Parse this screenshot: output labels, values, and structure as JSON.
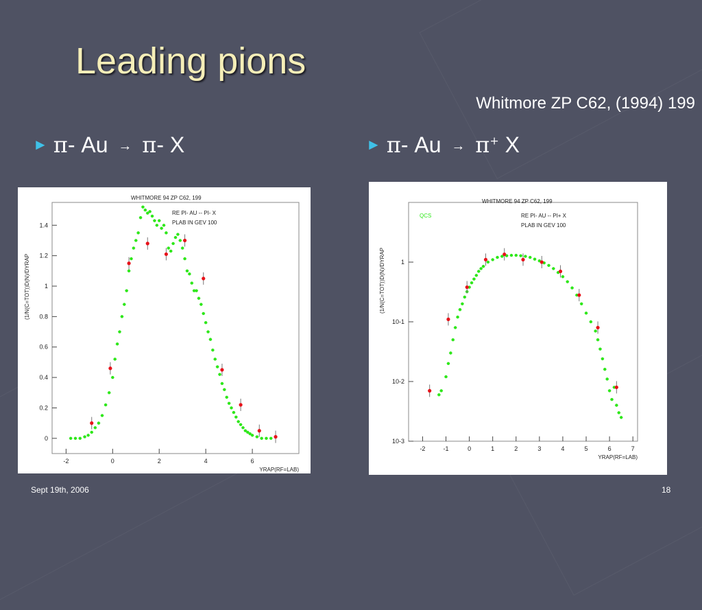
{
  "slide": {
    "title": "Leading pions",
    "citation": "Whitmore ZP C62, (1994) 199",
    "bullets": [
      {
        "pi": "π",
        "text1": "- Au",
        "arrow": "→",
        "pi2": "π",
        "text2": "- X",
        "sup": ""
      },
      {
        "pi": "π",
        "text1": "- Au",
        "arrow": "→",
        "pi2": "π",
        "text2": " X",
        "sup": "+"
      }
    ],
    "footer_date": "Sept 19th, 2006",
    "page_number": "18"
  },
  "colors": {
    "background": "#4f5263",
    "title": "#f5eeb8",
    "bullet": "#3fc1e8",
    "green": "#2ee81a",
    "red": "#e8121a"
  },
  "chart_data": [
    {
      "type": "scatter",
      "title": "WHITMORE 94   ZP C62, 199",
      "legend": [
        "RE   PI- AU -- PI- X",
        "PLAB IN GEV   100"
      ],
      "xlabel": "YRAP(RF=LAB)",
      "ylabel": "(1/N(C=TOT))D(N)/DYRAP",
      "xlim": [
        -2.6,
        8
      ],
      "ylim": [
        -0.1,
        1.55
      ],
      "yscale": "linear",
      "xticks": [
        -2,
        0,
        2,
        4,
        6
      ],
      "yticks": [
        0,
        0.2,
        0.4,
        0.6,
        0.8,
        1,
        1.2,
        1.4
      ],
      "yticklabels": [
        "0",
        "0.2",
        "0.4",
        "0.6",
        "0.8",
        "1",
        "1.2",
        "1.4"
      ],
      "grid": false,
      "series": [
        {
          "color": "green",
          "x": [
            -1.8,
            -1.6,
            -1.4,
            -1.2,
            -1.05,
            -0.9,
            -0.75,
            -0.6,
            -0.45,
            -0.3,
            -0.15,
            0,
            0.1,
            0.2,
            0.3,
            0.4,
            0.5,
            0.6,
            0.7,
            0.8,
            0.9,
            1.0,
            1.1,
            1.2,
            1.3,
            1.4,
            1.5,
            1.6,
            1.7,
            1.8,
            1.9,
            2.0,
            2.1,
            2.2,
            2.3,
            2.4,
            2.5,
            2.6,
            2.7,
            2.8,
            2.9,
            3.0,
            3.1,
            3.2,
            3.3,
            3.4,
            3.5,
            3.6,
            3.7,
            3.8,
            3.9,
            4.0,
            4.1,
            4.2,
            4.3,
            4.4,
            4.5,
            4.6,
            4.7,
            4.8,
            4.9,
            5.0,
            5.1,
            5.2,
            5.3,
            5.4,
            5.5,
            5.6,
            5.7,
            5.8,
            5.9,
            6.0,
            6.2,
            6.4,
            6.6,
            6.8
          ],
          "y": [
            0.0,
            0.0,
            0.0,
            0.01,
            0.02,
            0.04,
            0.07,
            0.1,
            0.15,
            0.22,
            0.3,
            0.4,
            0.52,
            0.62,
            0.7,
            0.8,
            0.88,
            0.97,
            1.1,
            1.18,
            1.25,
            1.3,
            1.35,
            1.45,
            1.52,
            1.5,
            1.48,
            1.49,
            1.46,
            1.43,
            1.4,
            1.43,
            1.38,
            1.4,
            1.35,
            1.25,
            1.23,
            1.28,
            1.32,
            1.34,
            1.3,
            1.25,
            1.18,
            1.1,
            1.08,
            1.02,
            0.97,
            0.97,
            0.92,
            0.88,
            0.82,
            0.76,
            0.7,
            0.65,
            0.58,
            0.52,
            0.47,
            0.42,
            0.36,
            0.32,
            0.27,
            0.23,
            0.2,
            0.17,
            0.14,
            0.11,
            0.09,
            0.07,
            0.05,
            0.04,
            0.03,
            0.02,
            0.01,
            0.0,
            0.0,
            0.0
          ]
        },
        {
          "color": "red",
          "x": [
            -0.9,
            -0.1,
            0.7,
            1.5,
            2.3,
            3.1,
            3.9,
            4.7,
            5.5,
            6.3,
            7.0
          ],
          "y": [
            0.1,
            0.46,
            1.15,
            1.28,
            1.21,
            1.3,
            1.05,
            0.45,
            0.22,
            0.05,
            0.01
          ]
        }
      ]
    },
    {
      "type": "scatter",
      "title": "WHITMORE 94   ZP C62, 199",
      "legend": [
        "RE   PI- AU -- PI+ X",
        "PLAB IN GEV   100"
      ],
      "corner_label": "QCS",
      "xlabel": "YRAP(RF=LAB)",
      "ylabel": "(1/N(C=TOT))D(N)/DYRAP",
      "xlim": [
        -2.6,
        7.2
      ],
      "ylim": [
        0.001,
        10
      ],
      "yscale": "log",
      "xticks": [
        -2,
        -1,
        0,
        1,
        2,
        3,
        4,
        5,
        6,
        7
      ],
      "yticks": [
        0.001,
        0.01,
        0.1,
        1
      ],
      "yticklabels": [
        "10-3",
        "10-2",
        "10-1",
        "1"
      ],
      "grid": false,
      "series": [
        {
          "color": "green",
          "x": [
            -1.3,
            -1.2,
            -1.0,
            -0.9,
            -0.8,
            -0.7,
            -0.6,
            -0.5,
            -0.4,
            -0.3,
            -0.2,
            -0.1,
            0,
            0.1,
            0.2,
            0.3,
            0.4,
            0.5,
            0.6,
            0.8,
            1.0,
            1.2,
            1.4,
            1.6,
            1.8,
            2.0,
            2.2,
            2.4,
            2.6,
            2.8,
            3.0,
            3.2,
            3.4,
            3.6,
            3.8,
            4.0,
            4.2,
            4.4,
            4.6,
            4.8,
            5.0,
            5.2,
            5.4,
            5.5,
            5.6,
            5.7,
            5.8,
            5.9,
            6.0,
            6.1,
            6.2,
            6.3,
            6.4,
            6.5
          ],
          "y": [
            0.006,
            0.007,
            0.012,
            0.02,
            0.03,
            0.05,
            0.08,
            0.12,
            0.16,
            0.2,
            0.26,
            0.32,
            0.38,
            0.45,
            0.52,
            0.6,
            0.7,
            0.78,
            0.85,
            1.0,
            1.1,
            1.2,
            1.25,
            1.28,
            1.3,
            1.3,
            1.28,
            1.25,
            1.2,
            1.12,
            1.05,
            0.97,
            0.88,
            0.78,
            0.67,
            0.57,
            0.47,
            0.37,
            0.28,
            0.2,
            0.14,
            0.1,
            0.07,
            0.05,
            0.035,
            0.024,
            0.016,
            0.011,
            0.007,
            0.005,
            0.008,
            0.004,
            0.003,
            0.0025
          ]
        },
        {
          "color": "red",
          "x": [
            -1.7,
            -0.9,
            -0.1,
            0.7,
            1.5,
            2.3,
            3.1,
            3.9,
            4.7,
            5.5,
            6.3
          ],
          "y": [
            0.007,
            0.11,
            0.38,
            1.1,
            1.35,
            1.1,
            1.0,
            0.7,
            0.28,
            0.08,
            0.008
          ]
        }
      ]
    }
  ]
}
